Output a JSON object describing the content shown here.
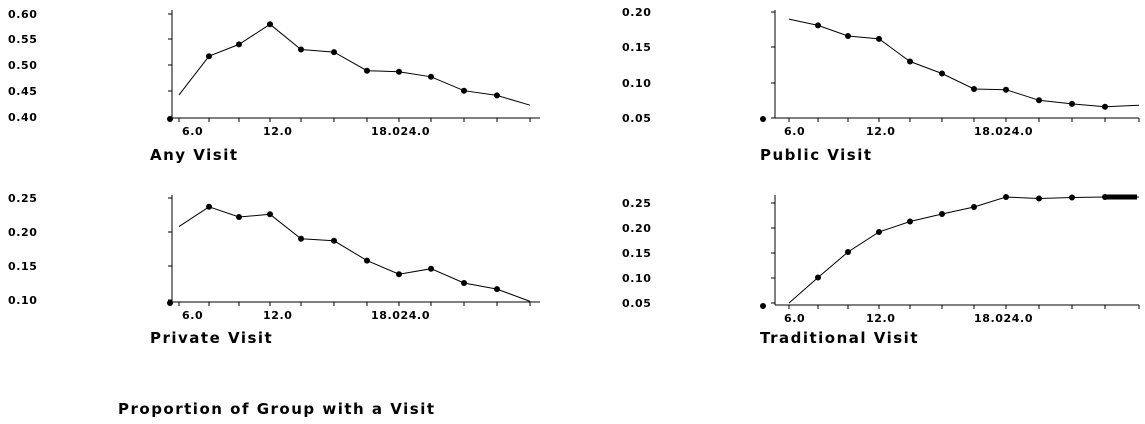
{
  "caption": "Proportion of Group with a Visit",
  "chart_data": [
    {
      "type": "line",
      "title": "Any Visit",
      "x_tick_labels": [
        "6.0",
        "12.0",
        "18.024.0"
      ],
      "y_ticks": [
        "0.40",
        "0.45",
        "0.50",
        "0.55",
        "0.60"
      ],
      "ylim": [
        0.4,
        0.6
      ],
      "series": [
        {
          "x": [
            5,
            6,
            7.5,
            9,
            10.5,
            12,
            13.5,
            15,
            16.5,
            18,
            19.5,
            21,
            22.5
          ],
          "y": [
            0.443,
            0.518,
            0.541,
            0.58,
            0.531,
            0.526,
            0.49,
            0.488,
            0.478,
            0.451,
            0.442,
            0.423,
            0.4
          ],
          "markers": [
            false,
            true,
            true,
            true,
            true,
            true,
            true,
            true,
            true,
            true,
            true,
            false,
            true
          ]
        }
      ]
    },
    {
      "type": "line",
      "title": "Public Visit",
      "x_tick_labels": [
        "6.0",
        "12.0",
        "18.024.0"
      ],
      "y_ticks": [
        "0.05",
        "0.10",
        "0.15",
        "0.20"
      ],
      "ylim": [
        0.05,
        0.2
      ],
      "series": [
        {
          "x": [
            5,
            6,
            7.5,
            9,
            10.5,
            12,
            13.5,
            15,
            16.5,
            18,
            19.5,
            21,
            22.5
          ],
          "y": [
            0.19,
            0.181,
            0.166,
            0.162,
            0.13,
            0.113,
            0.091,
            0.09,
            0.075,
            0.07,
            0.066,
            0.068,
            0.05
          ],
          "markers": [
            false,
            true,
            true,
            true,
            true,
            true,
            true,
            true,
            true,
            true,
            true,
            false,
            true
          ]
        }
      ]
    },
    {
      "type": "line",
      "title": "Private Visit",
      "x_tick_labels": [
        "6.0",
        "12.0",
        "18.024.0"
      ],
      "y_ticks": [
        "0.10",
        "0.15",
        "0.20",
        "0.25"
      ],
      "ylim": [
        0.1,
        0.25
      ],
      "series": [
        {
          "x": [
            5,
            6,
            7.5,
            9,
            10.5,
            12,
            13.5,
            15,
            16.5,
            18,
            19.5,
            21,
            22.5
          ],
          "y": [
            0.208,
            0.237,
            0.222,
            0.226,
            0.19,
            0.187,
            0.158,
            0.138,
            0.146,
            0.125,
            0.116,
            0.098,
            0.09
          ],
          "markers": [
            false,
            true,
            true,
            true,
            true,
            true,
            true,
            true,
            true,
            true,
            true,
            false,
            true
          ]
        }
      ]
    },
    {
      "type": "line",
      "title": "Traditional Visit",
      "x_tick_labels": [
        "6.0",
        "12.0",
        "18.024.0"
      ],
      "y_ticks": [
        "0.05",
        "0.10",
        "0.15",
        "0.20",
        "0.25"
      ],
      "ylim": [
        0.05,
        0.25
      ],
      "series": [
        {
          "x": [
            5,
            6,
            7.5,
            9,
            10.5,
            12,
            13.5,
            15,
            16.5,
            18,
            19.5,
            21,
            22.5
          ],
          "y": [
            0.05,
            0.101,
            0.152,
            0.192,
            0.213,
            0.228,
            0.242,
            0.262,
            0.259,
            0.261,
            0.262,
            0.262,
            0.04
          ],
          "markers": [
            false,
            true,
            true,
            true,
            true,
            true,
            true,
            true,
            true,
            true,
            true,
            true,
            true
          ]
        }
      ]
    }
  ]
}
